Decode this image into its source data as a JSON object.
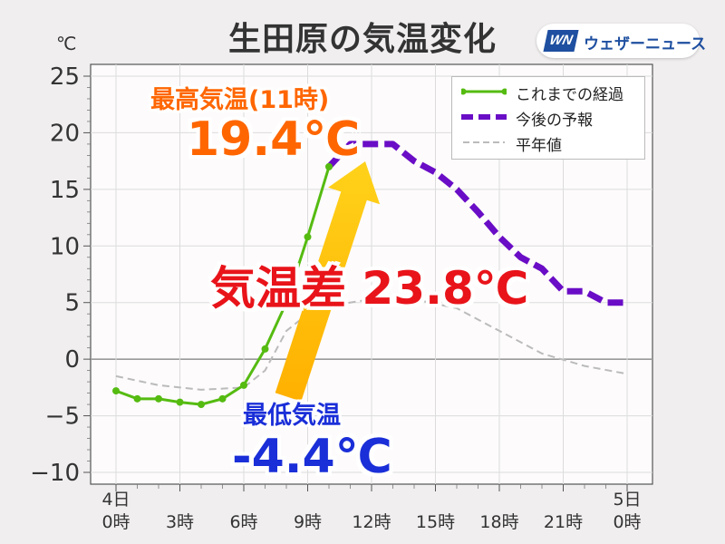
{
  "title": "生田原の気温変化",
  "logo": {
    "mark": "WN",
    "text": "ウェザーニュース"
  },
  "unit": "℃",
  "annotations": {
    "max_label": "最高気温(11時)",
    "max_value": "19.4℃",
    "diff": "気温差 23.8℃",
    "min_label": "最低気温",
    "min_value": "-4.4℃"
  },
  "colors": {
    "observed": "#55bb11",
    "forecast": "#6a0dc6",
    "normal": "#bbbbbb",
    "arrow": "#ffc400",
    "max": "#ff6600",
    "min": "#1a2fd8",
    "diff": "#e8141a"
  },
  "chart_data": {
    "type": "line",
    "ylim": [
      -10,
      25
    ],
    "y_ticks": [
      25,
      20,
      15,
      10,
      5,
      0,
      -5,
      -10
    ],
    "y_tick_labels": [
      "25",
      "20",
      "15",
      "10",
      "5",
      "0",
      "−5",
      "−10"
    ],
    "xlim": [
      0,
      24
    ],
    "x_ticks": [
      {
        "x": 0,
        "line1": "4日",
        "line2": "0時"
      },
      {
        "x": 3,
        "line1": "",
        "line2": "3時"
      },
      {
        "x": 6,
        "line1": "",
        "line2": "6時"
      },
      {
        "x": 9,
        "line1": "",
        "line2": "9時"
      },
      {
        "x": 12,
        "line1": "",
        "line2": "12時"
      },
      {
        "x": 15,
        "line1": "",
        "line2": "15時"
      },
      {
        "x": 18,
        "line1": "",
        "line2": "18時"
      },
      {
        "x": 21,
        "line1": "",
        "line2": "21時"
      },
      {
        "x": 24,
        "line1": "5日",
        "line2": "0時"
      }
    ],
    "grid": true,
    "legend_position": "top-right",
    "series": [
      {
        "name": "これまでの経過",
        "style": "solid-markers",
        "x": [
          0,
          1,
          2,
          3,
          4,
          5,
          6,
          7,
          8,
          9,
          10
        ],
        "y": [
          -2.8,
          -3.5,
          -3.5,
          -3.8,
          -4.0,
          -3.5,
          -2.3,
          0.9,
          5.0,
          10.8,
          17.0
        ]
      },
      {
        "name": "今後の予報",
        "style": "thick-dashed",
        "x": [
          10,
          11,
          12,
          13,
          14,
          15,
          16,
          17,
          18,
          19,
          20,
          21,
          22,
          23,
          24
        ],
        "y": [
          17.0,
          19.0,
          19.0,
          19.0,
          17.5,
          16.5,
          15.0,
          13.0,
          10.8,
          9.0,
          8.0,
          6.0,
          6.0,
          5.0,
          5.0
        ]
      },
      {
        "name": "平年値",
        "style": "thin-dashed",
        "x": [
          0,
          2,
          4,
          6,
          7,
          8,
          9,
          10,
          12,
          14,
          16,
          18,
          20,
          22,
          24
        ],
        "y": [
          -1.5,
          -2.3,
          -2.7,
          -2.5,
          -1.0,
          2.5,
          4.0,
          4.7,
          5.3,
          5.3,
          4.5,
          2.5,
          0.5,
          -0.6,
          -1.3
        ]
      }
    ]
  }
}
